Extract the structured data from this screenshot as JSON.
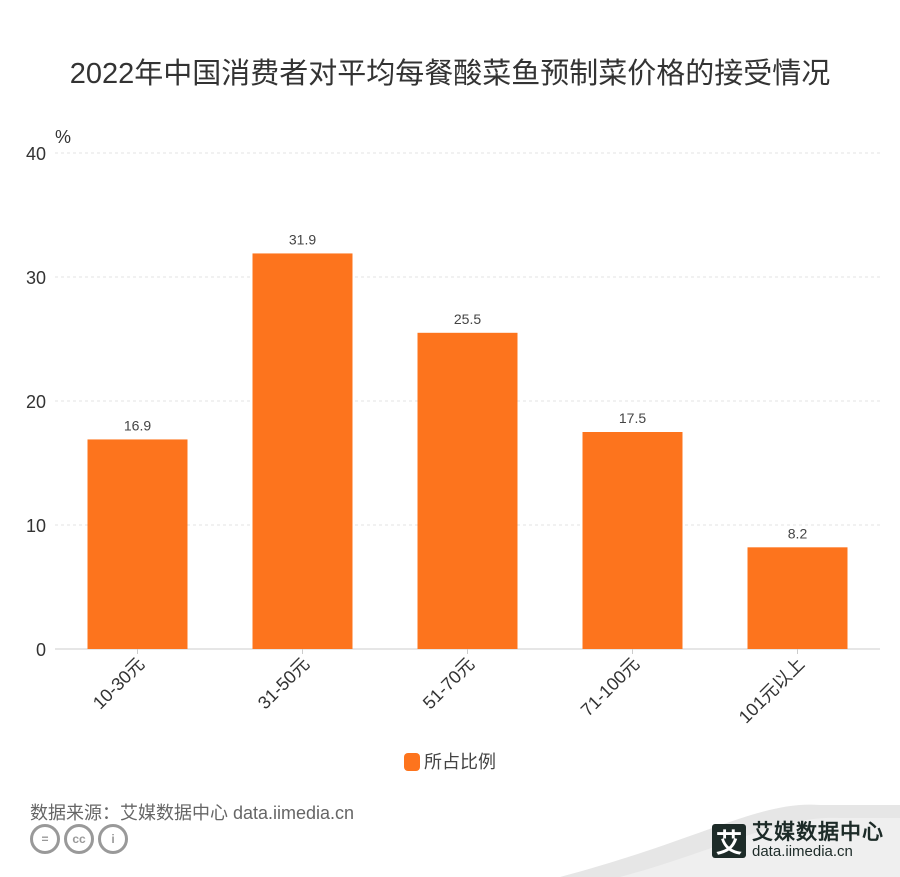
{
  "chart_data": {
    "type": "bar",
    "title": "2022年中国消费者对平均每餐酸菜鱼预制菜价格的接受情况",
    "ylabel": "%",
    "categories": [
      "10-30元",
      "31-50元",
      "51-70元",
      "71-100元",
      "101元以上"
    ],
    "series": [
      {
        "name": "所占比例",
        "values": [
          16.9,
          31.9,
          25.5,
          17.5,
          8.2
        ],
        "color": "#fd741d"
      }
    ],
    "ylim": [
      0,
      40
    ],
    "yticks": [
      0,
      10,
      20,
      30,
      40
    ],
    "grid": true,
    "legend": "bottom"
  },
  "footer": {
    "source": "数据来源：艾媒数据中心 data.iimedia.cn",
    "brand_name": "艾媒数据中心",
    "brand_url": "data.iimedia.cn",
    "logo_char": "艾",
    "license_icons": [
      "cc-nd-icon",
      "cc-icon",
      "cc-by-icon"
    ]
  }
}
